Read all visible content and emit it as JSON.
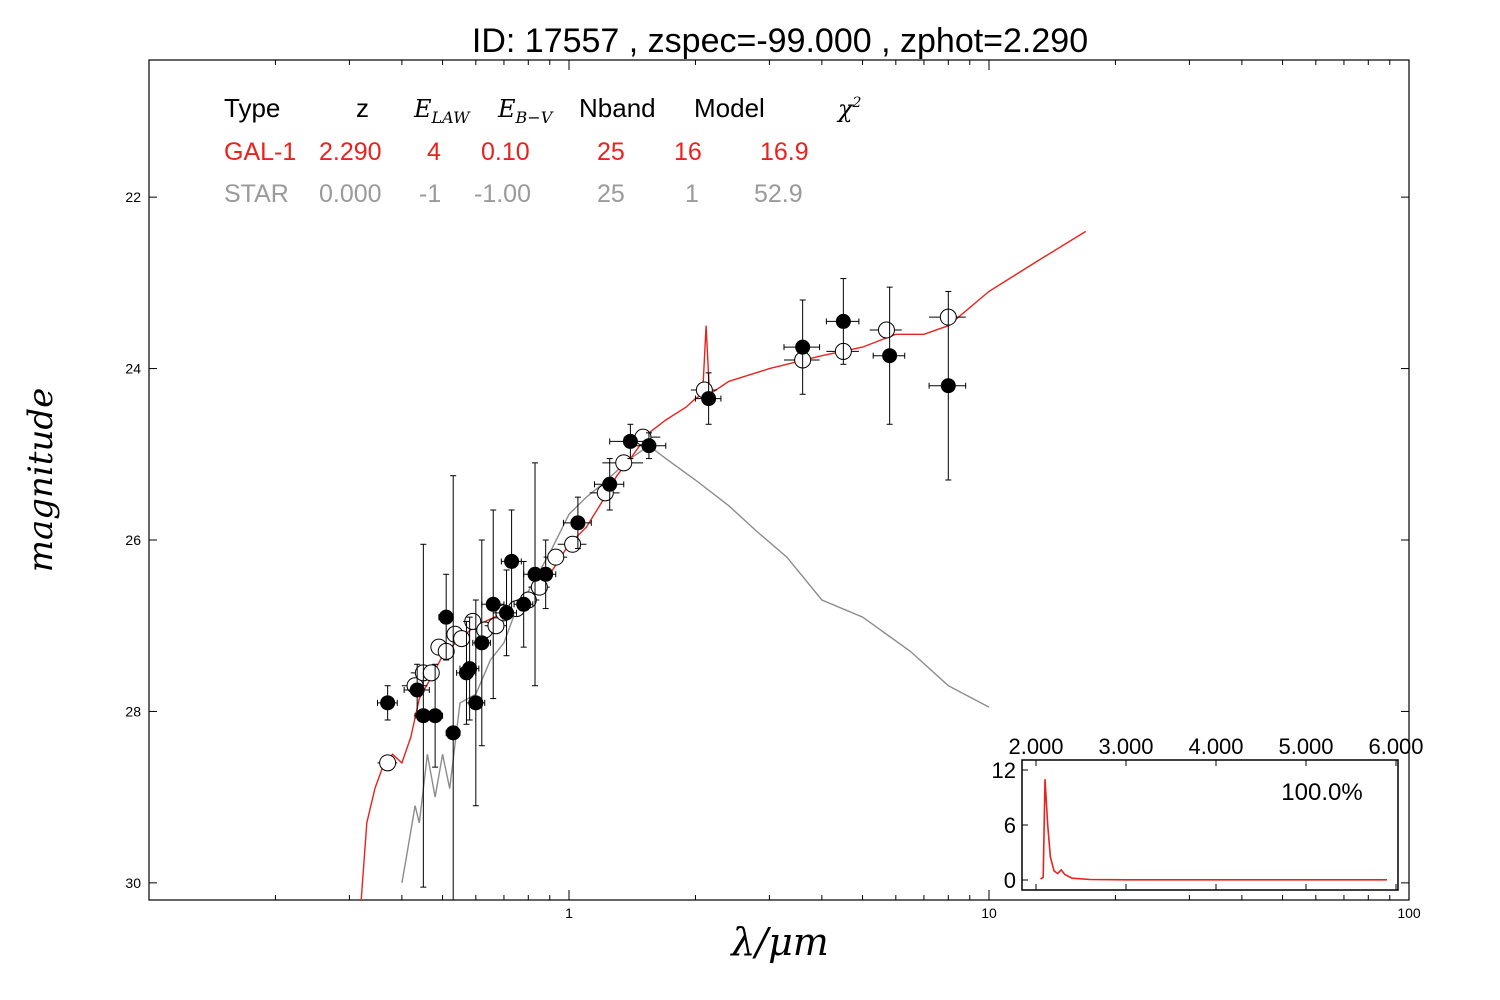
{
  "chart_data": {
    "type": "scatter",
    "title": "ID:  17557 , zspec=-99.000 , zphot=2.290",
    "xlabel": "λ/μm",
    "ylabel": "magnitude",
    "x_scale": "log",
    "xlim": [
      0.1,
      100
    ],
    "ylim": [
      30.2,
      20.4
    ],
    "x_ticks": [
      {
        "value": 1,
        "label": "1"
      },
      {
        "value": 10,
        "label": "10"
      },
      {
        "value": 100,
        "label": "100"
      }
    ],
    "y_ticks": [
      {
        "value": 22,
        "label": "22"
      },
      {
        "value": 24,
        "label": "24"
      },
      {
        "value": 26,
        "label": "26"
      },
      {
        "value": 28,
        "label": "28"
      },
      {
        "value": 30,
        "label": "30"
      }
    ],
    "fit_table": {
      "headers": [
        "Type",
        "z",
        "E_LAW",
        "E_B−V",
        "Nband",
        "Model",
        "χ²"
      ],
      "rows": [
        {
          "type": "GAL-1",
          "z": "2.290",
          "elaw": "4",
          "ebv": "0.10",
          "nband": "25",
          "model": "16",
          "chi2": "16.9",
          "color": "#e8231d"
        },
        {
          "type": "STAR",
          "z": "0.000",
          "elaw": "-1",
          "ebv": "-1.00",
          "nband": "25",
          "model": "1",
          "chi2": "52.9",
          "color": "#9a9a9a"
        }
      ]
    },
    "observed_points": [
      {
        "x": 0.37,
        "y": 27.9,
        "err": 0.2,
        "xerr": 0.02
      },
      {
        "x": 0.435,
        "y": 27.75,
        "err": 0.3,
        "xerr": 0.03
      },
      {
        "x": 0.45,
        "y": 28.05,
        "err": 2.0,
        "xerr": 0.02
      },
      {
        "x": 0.48,
        "y": 28.05,
        "err": 0.6,
        "xerr": 0.02
      },
      {
        "x": 0.51,
        "y": 26.9,
        "err": 0.5,
        "xerr": 0.02
      },
      {
        "x": 0.53,
        "y": 28.25,
        "err": 3.0,
        "xerr": 0.02
      },
      {
        "x": 0.57,
        "y": 27.55,
        "err": 0.6,
        "xerr": 0.03
      },
      {
        "x": 0.58,
        "y": 27.5,
        "err": 0.6,
        "xerr": 0.03
      },
      {
        "x": 0.6,
        "y": 27.9,
        "err": 1.2,
        "xerr": 0.03
      },
      {
        "x": 0.62,
        "y": 27.2,
        "err": 1.2,
        "xerr": 0.03
      },
      {
        "x": 0.66,
        "y": 26.75,
        "err": 1.1,
        "xerr": 0.04
      },
      {
        "x": 0.71,
        "y": 26.85,
        "err": 0.5,
        "xerr": 0.04
      },
      {
        "x": 0.73,
        "y": 26.25,
        "err": 0.6,
        "xerr": 0.04
      },
      {
        "x": 0.78,
        "y": 26.75,
        "err": 0.5,
        "xerr": 0.04
      },
      {
        "x": 0.83,
        "y": 26.4,
        "err": 1.3,
        "xerr": 0.05
      },
      {
        "x": 0.88,
        "y": 26.4,
        "err": 0.4,
        "xerr": 0.05
      },
      {
        "x": 1.05,
        "y": 25.8,
        "err": 0.3,
        "xerr": 0.08
      },
      {
        "x": 1.25,
        "y": 25.35,
        "err": 0.3,
        "xerr": 0.1
      },
      {
        "x": 1.4,
        "y": 24.85,
        "err": 0.2,
        "xerr": 0.15
      },
      {
        "x": 1.55,
        "y": 24.9,
        "err": 0.15,
        "xerr": 0.15
      },
      {
        "x": 2.15,
        "y": 24.35,
        "err": 0.3,
        "xerr": 0.15
      },
      {
        "x": 3.6,
        "y": 23.75,
        "err": 0.55,
        "xerr": 0.35
      },
      {
        "x": 4.5,
        "y": 23.45,
        "err": 0.5,
        "xerr": 0.4
      },
      {
        "x": 5.8,
        "y": 23.85,
        "err": 0.8,
        "xerr": 0.5
      },
      {
        "x": 8.0,
        "y": 24.2,
        "err": 1.1,
        "xerr": 0.8
      }
    ],
    "model_points": [
      {
        "x": 0.37,
        "y": 28.6,
        "xerr": 0.02
      },
      {
        "x": 0.43,
        "y": 27.7,
        "xerr": 0.03
      },
      {
        "x": 0.45,
        "y": 27.55,
        "xerr": 0.03
      },
      {
        "x": 0.47,
        "y": 27.55,
        "xerr": 0.02
      },
      {
        "x": 0.49,
        "y": 27.25,
        "xerr": 0.02
      },
      {
        "x": 0.51,
        "y": 27.3,
        "xerr": 0.02
      },
      {
        "x": 0.535,
        "y": 27.1,
        "xerr": 0.02
      },
      {
        "x": 0.555,
        "y": 27.15,
        "xerr": 0.02
      },
      {
        "x": 0.59,
        "y": 26.95,
        "xerr": 0.03
      },
      {
        "x": 0.63,
        "y": 27.05,
        "xerr": 0.03
      },
      {
        "x": 0.67,
        "y": 27.0,
        "xerr": 0.04
      },
      {
        "x": 0.7,
        "y": 26.85,
        "xerr": 0.04
      },
      {
        "x": 0.75,
        "y": 26.8,
        "xerr": 0.04
      },
      {
        "x": 0.8,
        "y": 26.7,
        "xerr": 0.05
      },
      {
        "x": 0.85,
        "y": 26.55,
        "xerr": 0.05
      },
      {
        "x": 0.93,
        "y": 26.2,
        "xerr": 0.06
      },
      {
        "x": 1.02,
        "y": 26.05,
        "xerr": 0.08
      },
      {
        "x": 1.22,
        "y": 25.45,
        "xerr": 0.1
      },
      {
        "x": 1.35,
        "y": 25.1,
        "xerr": 0.15
      },
      {
        "x": 1.5,
        "y": 24.8,
        "xerr": 0.15
      },
      {
        "x": 2.1,
        "y": 24.25,
        "xerr": 0.15
      },
      {
        "x": 3.6,
        "y": 23.9,
        "xerr": 0.35
      },
      {
        "x": 4.5,
        "y": 23.8,
        "xerr": 0.4
      },
      {
        "x": 5.7,
        "y": 23.55,
        "xerr": 0.5
      },
      {
        "x": 8.0,
        "y": 23.4,
        "xerr": 0.8
      }
    ],
    "galaxy_model_curve": {
      "color": "#e8231d",
      "points": [
        [
          0.32,
          30.2
        ],
        [
          0.33,
          29.3
        ],
        [
          0.345,
          28.9
        ],
        [
          0.36,
          28.65
        ],
        [
          0.38,
          28.5
        ],
        [
          0.4,
          28.6
        ],
        [
          0.42,
          28.3
        ],
        [
          0.44,
          27.85
        ],
        [
          0.47,
          27.6
        ],
        [
          0.5,
          27.35
        ],
        [
          0.55,
          27.15
        ],
        [
          0.6,
          27.0
        ],
        [
          0.7,
          26.85
        ],
        [
          0.8,
          26.7
        ],
        [
          0.9,
          26.4
        ],
        [
          1.0,
          26.05
        ],
        [
          1.1,
          25.85
        ],
        [
          1.2,
          25.55
        ],
        [
          1.3,
          25.25
        ],
        [
          1.4,
          25.05
        ],
        [
          1.55,
          24.75
        ],
        [
          1.7,
          24.6
        ],
        [
          1.9,
          24.45
        ],
        [
          2.0,
          24.35
        ],
        [
          2.08,
          24.3
        ],
        [
          2.12,
          23.5
        ],
        [
          2.16,
          24.3
        ],
        [
          2.4,
          24.15
        ],
        [
          3.0,
          24.0
        ],
        [
          4.0,
          23.85
        ],
        [
          5.0,
          23.75
        ],
        [
          6.0,
          23.6
        ],
        [
          7.0,
          23.6
        ],
        [
          8.0,
          23.5
        ],
        [
          10.0,
          23.1
        ],
        [
          13.0,
          22.75
        ],
        [
          17.0,
          22.4
        ]
      ]
    },
    "star_model_curve": {
      "color": "#8c8c8c",
      "points": [
        [
          0.4,
          30.0
        ],
        [
          0.41,
          29.7
        ],
        [
          0.43,
          29.1
        ],
        [
          0.44,
          29.3
        ],
        [
          0.46,
          28.5
        ],
        [
          0.48,
          29.0
        ],
        [
          0.5,
          28.5
        ],
        [
          0.52,
          28.9
        ],
        [
          0.55,
          27.9
        ],
        [
          0.6,
          27.8
        ],
        [
          0.65,
          27.4
        ],
        [
          0.7,
          27.2
        ],
        [
          0.75,
          26.8
        ],
        [
          0.8,
          26.6
        ],
        [
          0.9,
          26.15
        ],
        [
          1.0,
          25.7
        ],
        [
          1.1,
          25.5
        ],
        [
          1.2,
          25.35
        ],
        [
          1.4,
          25.05
        ],
        [
          1.55,
          24.9
        ],
        [
          1.7,
          25.05
        ],
        [
          2.0,
          25.3
        ],
        [
          2.4,
          25.6
        ],
        [
          2.8,
          25.9
        ],
        [
          3.3,
          26.2
        ],
        [
          4.0,
          26.7
        ],
        [
          5.0,
          26.9
        ],
        [
          6.5,
          27.3
        ],
        [
          8.0,
          27.7
        ],
        [
          10.0,
          27.95
        ]
      ]
    },
    "inset": {
      "xlim": [
        2.0,
        6.0
      ],
      "ylim": [
        0,
        12
      ],
      "x_ticks": [
        {
          "value": 2.0,
          "label": "2.000"
        },
        {
          "value": 3.0,
          "label": "3.000"
        },
        {
          "value": 4.0,
          "label": "4.000"
        },
        {
          "value": 5.0,
          "label": "5.000"
        },
        {
          "value": 6.0,
          "label": "6.000"
        }
      ],
      "y_ticks": [
        {
          "value": 0,
          "label": "0"
        },
        {
          "value": 6,
          "label": "6"
        },
        {
          "value": 12,
          "label": "12"
        }
      ],
      "annotation": "100.0%",
      "pdf_curve": [
        [
          2.05,
          0.1
        ],
        [
          2.08,
          0.3
        ],
        [
          2.1,
          11.0
        ],
        [
          2.13,
          6.0
        ],
        [
          2.16,
          2.5
        ],
        [
          2.2,
          1.0
        ],
        [
          2.24,
          0.7
        ],
        [
          2.28,
          1.1
        ],
        [
          2.32,
          0.6
        ],
        [
          2.4,
          0.2
        ],
        [
          2.6,
          0.05
        ],
        [
          3.0,
          0.02
        ],
        [
          4.0,
          0.02
        ],
        [
          5.0,
          0.02
        ],
        [
          5.9,
          0.02
        ]
      ]
    }
  }
}
